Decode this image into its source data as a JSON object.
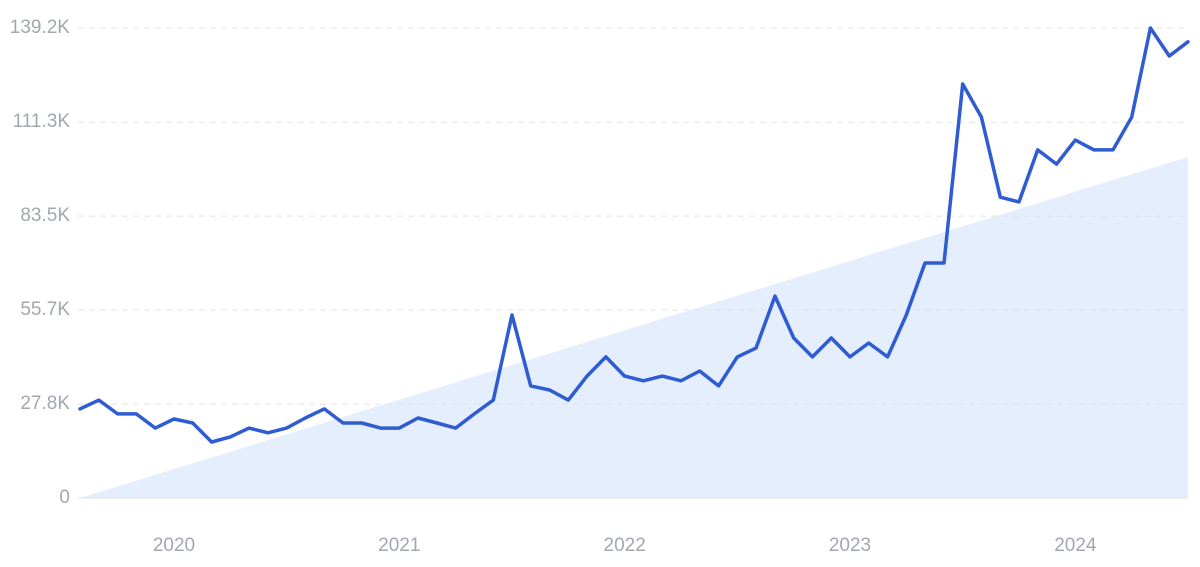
{
  "chart_data": {
    "type": "line",
    "x": [
      2019.583,
      2019.667,
      2019.75,
      2019.833,
      2019.917,
      2020.0,
      2020.083,
      2020.167,
      2020.25,
      2020.333,
      2020.417,
      2020.5,
      2020.583,
      2020.667,
      2020.75,
      2020.833,
      2020.917,
      2021.0,
      2021.083,
      2021.167,
      2021.25,
      2021.333,
      2021.417,
      2021.5,
      2021.583,
      2021.667,
      2021.75,
      2021.833,
      2021.917,
      2022.0,
      2022.083,
      2022.167,
      2022.25,
      2022.333,
      2022.417,
      2022.5,
      2022.583,
      2022.667,
      2022.75,
      2022.833,
      2022.917,
      2023.0,
      2023.083,
      2023.167,
      2023.25,
      2023.333,
      2023.417,
      2023.5,
      2023.583,
      2023.667,
      2023.75,
      2023.833,
      2023.917,
      2024.0,
      2024.083,
      2024.167,
      2024.25,
      2024.333,
      2024.417,
      2024.5
    ],
    "values": [
      26400,
      29000,
      24900,
      24900,
      20700,
      23400,
      22200,
      16600,
      18100,
      20700,
      19300,
      20700,
      23700,
      26400,
      22200,
      22200,
      20700,
      20700,
      23700,
      22200,
      20700,
      24900,
      29000,
      54200,
      33200,
      32000,
      29000,
      36100,
      41800,
      36100,
      34700,
      36100,
      34700,
      37600,
      33200,
      41800,
      44400,
      59800,
      47400,
      41800,
      47400,
      41800,
      45900,
      41800,
      54200,
      69600,
      69600,
      122600,
      112800,
      89100,
      87700,
      103100,
      98900,
      106000,
      103100,
      103100,
      112800,
      139200,
      130900,
      135100
    ],
    "color": "#2f5bd3",
    "trend": {
      "x": [
        2019.583,
        2024.5
      ],
      "values": [
        0,
        101000
      ],
      "color": "#dbe8fb"
    },
    "xlim": [
      2019.583,
      2024.5
    ],
    "xticks": [
      2020,
      2021,
      2022,
      2023,
      2024
    ],
    "ylim": [
      0,
      139200
    ],
    "yticks": [
      0,
      {
        "value": 27800,
        "label": "27.8K"
      },
      {
        "value": 55700,
        "label": "55.7K"
      },
      {
        "value": 83500,
        "label": "83.5K"
      },
      {
        "value": 111300,
        "label": "111.3K"
      },
      {
        "value": 139200,
        "label": "139.2K"
      }
    ],
    "grid": true
  }
}
